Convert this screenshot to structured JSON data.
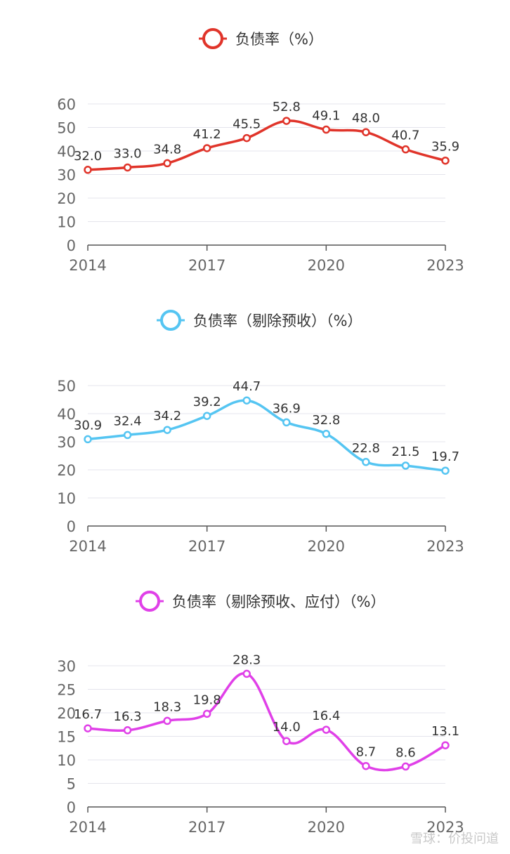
{
  "chart_data": [
    {
      "type": "line",
      "title": "",
      "x": [
        "2014",
        "2015",
        "2016",
        "2017",
        "2018",
        "2019",
        "2020",
        "2021",
        "2022",
        "2023"
      ],
      "x_tick_labels": [
        "2014",
        "2017",
        "2020",
        "2023"
      ],
      "series": [
        {
          "name": "负债率（%）",
          "values": [
            32.0,
            33.0,
            34.8,
            41.2,
            45.5,
            52.8,
            49.1,
            48.0,
            40.7,
            35.9
          ]
        }
      ],
      "value_labels": [
        "32.0",
        "33.0",
        "34.8",
        "41.2",
        "45.5",
        "52.8",
        "49.1",
        "48.0",
        "40.7",
        "35.9"
      ],
      "y_ticks": [
        "0",
        "10",
        "20",
        "30",
        "40",
        "50",
        "60"
      ],
      "ylim": [
        0,
        60
      ],
      "color": "#e0342a",
      "legend": "top-center",
      "grid": true
    },
    {
      "type": "line",
      "title": "",
      "x": [
        "2014",
        "2015",
        "2016",
        "2017",
        "2018",
        "2019",
        "2020",
        "2021",
        "2022",
        "2023"
      ],
      "x_tick_labels": [
        "2014",
        "2017",
        "2020",
        "2023"
      ],
      "series": [
        {
          "name": "负债率（剔除预收）（%）",
          "values": [
            30.9,
            32.4,
            34.2,
            39.2,
            44.7,
            36.9,
            32.8,
            22.8,
            21.5,
            19.7
          ]
        }
      ],
      "value_labels": [
        "30.9",
        "32.4",
        "34.2",
        "39.2",
        "44.7",
        "36.9",
        "32.8",
        "22.8",
        "21.5",
        "19.7"
      ],
      "y_ticks": [
        "0",
        "10",
        "20",
        "30",
        "40",
        "50"
      ],
      "ylim": [
        0,
        50
      ],
      "color": "#55c5f2",
      "legend": "top-center",
      "grid": true
    },
    {
      "type": "line",
      "title": "",
      "x": [
        "2014",
        "2015",
        "2016",
        "2017",
        "2018",
        "2019",
        "2020",
        "2021",
        "2022",
        "2023"
      ],
      "x_tick_labels": [
        "2014",
        "2017",
        "2020",
        "2023"
      ],
      "series": [
        {
          "name": "负债率（剔除预收、应付）（%）",
          "values": [
            16.7,
            16.3,
            18.3,
            19.8,
            28.3,
            14.0,
            16.4,
            8.7,
            8.6,
            13.1
          ]
        }
      ],
      "value_labels": [
        "16.7",
        "16.3",
        "18.3",
        "19.8",
        "28.3",
        "14.0",
        "16.4",
        "8.7",
        "8.6",
        "13.1"
      ],
      "y_ticks": [
        "0",
        "5",
        "10",
        "15",
        "20",
        "25",
        "30"
      ],
      "ylim": [
        0,
        30
      ],
      "color": "#e040e8",
      "legend": "top-center",
      "grid": true
    }
  ],
  "watermark": "雪球：价投问道"
}
